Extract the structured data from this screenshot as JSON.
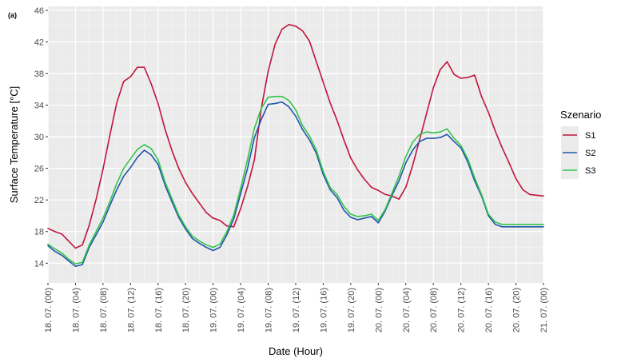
{
  "chart_data": {
    "type": "line",
    "panel_label": "(a)",
    "xlabel": "Date (Hour)",
    "ylabel": "Surface Temperature [°C]",
    "ylim": [
      11.5,
      46.5
    ],
    "xlim": [
      0,
      72
    ],
    "grid": true,
    "y_ticks": [
      14,
      18,
      22,
      26,
      30,
      34,
      38,
      42,
      46
    ],
    "x_ticks": [
      {
        "hour": 0,
        "label": "18. 07. (00)"
      },
      {
        "hour": 4,
        "label": "18. 07. (04)"
      },
      {
        "hour": 8,
        "label": "18. 07. (08)"
      },
      {
        "hour": 12,
        "label": "18. 07. (12)"
      },
      {
        "hour": 16,
        "label": "18. 07. (16)"
      },
      {
        "hour": 20,
        "label": "18. 07. (20)"
      },
      {
        "hour": 24,
        "label": "19. 07. (00)"
      },
      {
        "hour": 28,
        "label": "19. 07. (04)"
      },
      {
        "hour": 32,
        "label": "19. 07. (08)"
      },
      {
        "hour": 36,
        "label": "19. 07. (12)"
      },
      {
        "hour": 40,
        "label": "19. 07. (16)"
      },
      {
        "hour": 44,
        "label": "19. 07. (20)"
      },
      {
        "hour": 48,
        "label": "20. 07. (00)"
      },
      {
        "hour": 52,
        "label": "20. 07. (04)"
      },
      {
        "hour": 56,
        "label": "20. 07. (08)"
      },
      {
        "hour": 60,
        "label": "20. 07. (12)"
      },
      {
        "hour": 64,
        "label": "20. 07. (16)"
      },
      {
        "hour": 68,
        "label": "20. 07. (20)"
      },
      {
        "hour": 72,
        "label": "21. 07. (00)"
      }
    ],
    "legend": {
      "title": "Szenario",
      "position": "right"
    },
    "series": [
      {
        "name": "S1",
        "color": "#c0143c",
        "values": [
          18.4,
          18.0,
          17.7,
          16.8,
          15.9,
          16.3,
          18.8,
          22.1,
          25.9,
          30.2,
          34.3,
          37.0,
          37.6,
          38.8,
          38.8,
          36.7,
          34.2,
          31.0,
          28.3,
          26.0,
          24.2,
          22.8,
          21.6,
          20.4,
          19.7,
          19.4,
          18.7,
          18.6,
          20.9,
          23.7,
          27.1,
          33.6,
          38.3,
          41.7,
          43.6,
          44.2,
          44.0,
          43.4,
          42.1,
          39.5,
          36.9,
          34.3,
          32.1,
          29.6,
          27.3,
          25.8,
          24.6,
          23.6,
          23.2,
          22.7,
          22.5,
          22.1,
          23.6,
          26.4,
          29.6,
          32.9,
          36.2,
          38.5,
          39.5,
          37.9,
          37.4,
          37.5,
          37.8,
          35.1,
          33.1,
          30.7,
          28.6,
          26.7,
          24.7,
          23.3,
          22.7,
          22.6,
          22.5
        ]
      },
      {
        "name": "S2",
        "color": "#2255aa",
        "values": [
          16.2,
          15.5,
          15.0,
          14.3,
          13.6,
          13.8,
          16.0,
          17.6,
          19.2,
          21.3,
          23.3,
          25.0,
          26.1,
          27.4,
          28.3,
          27.7,
          26.5,
          23.9,
          21.8,
          19.8,
          18.3,
          17.1,
          16.5,
          16.0,
          15.6,
          16.0,
          17.6,
          19.6,
          22.8,
          26.0,
          29.9,
          32.2,
          34.1,
          34.2,
          34.4,
          33.8,
          32.6,
          30.9,
          29.6,
          27.9,
          25.2,
          23.3,
          22.3,
          20.7,
          19.8,
          19.5,
          19.7,
          19.9,
          19.1,
          20.6,
          22.6,
          24.4,
          26.7,
          28.3,
          29.4,
          29.8,
          29.8,
          29.9,
          30.3,
          29.4,
          28.6,
          26.8,
          24.4,
          22.5,
          20.0,
          18.9,
          18.6,
          18.6,
          18.6,
          18.6,
          18.6,
          18.6,
          18.6
        ]
      },
      {
        "name": "S3",
        "color": "#33c44d",
        "values": [
          16.4,
          15.8,
          15.3,
          14.5,
          13.9,
          14.1,
          16.3,
          18.0,
          19.7,
          21.8,
          24.1,
          26.0,
          27.2,
          28.4,
          29.0,
          28.5,
          27.1,
          24.3,
          22.2,
          20.1,
          18.6,
          17.4,
          16.8,
          16.3,
          16.0,
          16.4,
          18.0,
          20.1,
          23.5,
          27.1,
          31.1,
          33.6,
          35.0,
          35.1,
          35.1,
          34.6,
          33.4,
          31.4,
          30.1,
          28.3,
          25.6,
          23.6,
          22.7,
          21.2,
          20.2,
          19.9,
          20.0,
          20.2,
          19.4,
          20.8,
          22.9,
          25.0,
          27.5,
          29.3,
          30.3,
          30.6,
          30.5,
          30.6,
          31.0,
          29.8,
          28.9,
          27.2,
          24.8,
          22.7,
          20.2,
          19.2,
          18.9,
          18.9,
          18.9,
          18.9,
          18.9,
          18.9,
          18.9
        ]
      }
    ]
  }
}
